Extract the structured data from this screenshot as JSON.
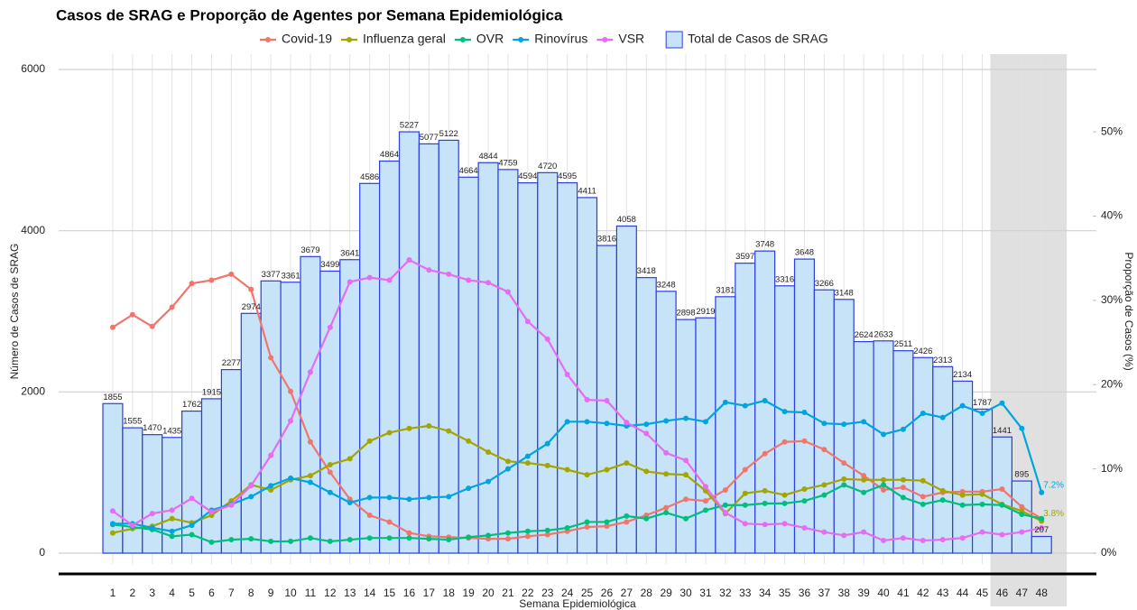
{
  "chart_data": {
    "type": "combo",
    "title": "Casos de SRAG e Proporção de Agentes por Semana Epidemiológica",
    "x_label": "Semana Epidemiológica",
    "y_label": "Número de Casos de SRAG",
    "y2_label": "Proporção de Casos (%)",
    "categories": [
      "1",
      "2",
      "3",
      "4",
      "5",
      "6",
      "7",
      "8",
      "9",
      "10",
      "11",
      "12",
      "13",
      "14",
      "15",
      "16",
      "17",
      "18",
      "19",
      "20",
      "21",
      "22",
      "23",
      "24",
      "25",
      "26",
      "27",
      "28",
      "29",
      "30",
      "31",
      "32",
      "33",
      "34",
      "35",
      "36",
      "37",
      "38",
      "39",
      "40",
      "41",
      "42",
      "43",
      "44",
      "45",
      "46",
      "47",
      "48"
    ],
    "shaded_weeks": [
      "46",
      "48"
    ],
    "ylim": [
      0,
      6000
    ],
    "yticks": [
      0,
      2000,
      4000,
      6000
    ],
    "y2lim": [
      0,
      57.4
    ],
    "y2ticks": [
      {
        "value": 0,
        "label": "0%"
      },
      {
        "value": 10,
        "label": "10%"
      },
      {
        "value": 20,
        "label": "20%"
      },
      {
        "value": 30,
        "label": "30%"
      },
      {
        "value": 40,
        "label": "40%"
      },
      {
        "value": 50,
        "label": "50%"
      }
    ],
    "grid": true,
    "legend": "top",
    "series": [
      {
        "name": "Total de Casos de SRAG",
        "type": "bar",
        "color": "#c6e3f8",
        "stroke": "#2b3ee0",
        "values": [
          1855,
          1555,
          1470,
          1435,
          1762,
          1915,
          2277,
          2974,
          3377,
          3361,
          3679,
          3499,
          3641,
          4586,
          4864,
          5227,
          5077,
          5122,
          4664,
          4844,
          4759,
          4594,
          4720,
          4595,
          4411,
          3816,
          4058,
          3418,
          3248,
          2898,
          2919,
          3181,
          3597,
          3748,
          3316,
          3648,
          3266,
          3148,
          2624,
          2633,
          2511,
          2426,
          2313,
          2134,
          1787,
          1441,
          895,
          207
        ]
      },
      {
        "name": "Covid-19",
        "type": "line",
        "axis": "y2",
        "color": "#f0766d",
        "values": [
          26.8,
          28.3,
          26.9,
          29.2,
          32.0,
          32.4,
          33.1,
          31.3,
          23.2,
          19.2,
          13.2,
          9.6,
          6.4,
          4.5,
          3.7,
          2.4,
          2.0,
          1.9,
          1.8,
          1.7,
          1.7,
          2.0,
          2.2,
          2.6,
          3.1,
          3.2,
          3.7,
          4.5,
          5.4,
          6.4,
          6.2,
          7.5,
          9.9,
          11.8,
          13.2,
          13.3,
          12.3,
          10.7,
          9.2,
          7.5,
          7.8,
          6.7,
          7.2,
          7.3,
          7.3,
          7.6,
          5.5,
          4.1
        ]
      },
      {
        "name": "Influenza geral",
        "type": "line",
        "axis": "y2",
        "color": "#a3a500",
        "values": [
          2.4,
          2.9,
          3.2,
          4.1,
          3.6,
          4.5,
          6.2,
          8.1,
          7.5,
          8.7,
          9.2,
          10.5,
          11.2,
          13.3,
          14.3,
          14.8,
          15.1,
          14.5,
          13.3,
          12.0,
          10.9,
          10.7,
          10.4,
          9.9,
          9.3,
          9.9,
          10.7,
          9.7,
          9.4,
          9.3,
          7.4,
          4.7,
          7.1,
          7.4,
          6.9,
          7.6,
          8.1,
          8.8,
          8.7,
          8.7,
          8.7,
          8.6,
          7.4,
          6.9,
          7.0,
          5.8,
          5.0,
          3.8
        ],
        "value_labels": [
          null,
          null,
          null,
          null,
          null,
          null,
          null,
          null,
          null,
          null,
          null,
          null,
          null,
          null,
          null,
          null,
          null,
          null,
          null,
          null,
          null,
          null,
          null,
          null,
          null,
          null,
          null,
          null,
          null,
          null,
          null,
          null,
          null,
          null,
          null,
          null,
          null,
          null,
          null,
          null,
          null,
          null,
          null,
          null,
          null,
          null,
          null,
          "3.8%"
        ]
      },
      {
        "name": "OVR",
        "type": "line",
        "axis": "y2",
        "color": "#00bf7d",
        "values": [
          3.4,
          3.1,
          2.8,
          2.0,
          2.2,
          1.3,
          1.6,
          1.7,
          1.4,
          1.4,
          1.8,
          1.4,
          1.6,
          1.8,
          1.8,
          1.8,
          1.7,
          1.6,
          1.9,
          2.1,
          2.4,
          2.6,
          2.7,
          3.0,
          3.7,
          3.7,
          4.4,
          4.1,
          4.8,
          4.1,
          5.1,
          5.7,
          5.7,
          5.9,
          5.9,
          6.2,
          6.9,
          8.1,
          7.2,
          8.1,
          6.6,
          5.8,
          6.3,
          5.7,
          5.8,
          5.7,
          4.6,
          4.1
        ]
      },
      {
        "name": "Rinovírus",
        "type": "line",
        "axis": "y2",
        "color": "#00a5e0",
        "values": [
          3.5,
          3.5,
          3.0,
          2.6,
          3.3,
          5.1,
          5.8,
          6.7,
          8.0,
          8.9,
          8.4,
          7.2,
          6.0,
          6.6,
          6.6,
          6.4,
          6.6,
          6.7,
          7.7,
          8.5,
          10.0,
          11.5,
          13.0,
          15.6,
          15.6,
          15.4,
          15.1,
          15.3,
          15.7,
          16.0,
          15.6,
          17.9,
          17.5,
          18.1,
          16.8,
          16.7,
          15.4,
          15.3,
          15.6,
          14.1,
          14.7,
          16.6,
          16.1,
          17.5,
          16.6,
          17.8,
          14.8,
          7.2
        ],
        "value_labels": [
          null,
          null,
          null,
          null,
          null,
          null,
          null,
          null,
          null,
          null,
          null,
          null,
          null,
          null,
          null,
          null,
          null,
          null,
          null,
          null,
          null,
          null,
          null,
          null,
          null,
          null,
          null,
          null,
          null,
          null,
          null,
          null,
          null,
          null,
          null,
          null,
          null,
          null,
          null,
          null,
          null,
          null,
          null,
          null,
          null,
          null,
          null,
          "7.2%"
        ]
      },
      {
        "name": "VSR",
        "type": "line",
        "axis": "y2",
        "color": "#e76bf3",
        "values": [
          5.0,
          3.3,
          4.7,
          5.1,
          6.5,
          4.9,
          5.7,
          8.0,
          11.6,
          15.7,
          21.5,
          26.8,
          32.2,
          32.7,
          32.4,
          34.8,
          33.6,
          33.1,
          32.4,
          32.1,
          31.0,
          27.5,
          25.4,
          21.2,
          18.2,
          18.1,
          15.5,
          14.2,
          11.9,
          11.0,
          7.9,
          4.8,
          3.5,
          3.4,
          3.5,
          3.0,
          2.5,
          2.1,
          2.5,
          1.5,
          1.8,
          1.5,
          1.6,
          1.8,
          2.5,
          2.2,
          2.5,
          3.0
        ]
      }
    ]
  }
}
